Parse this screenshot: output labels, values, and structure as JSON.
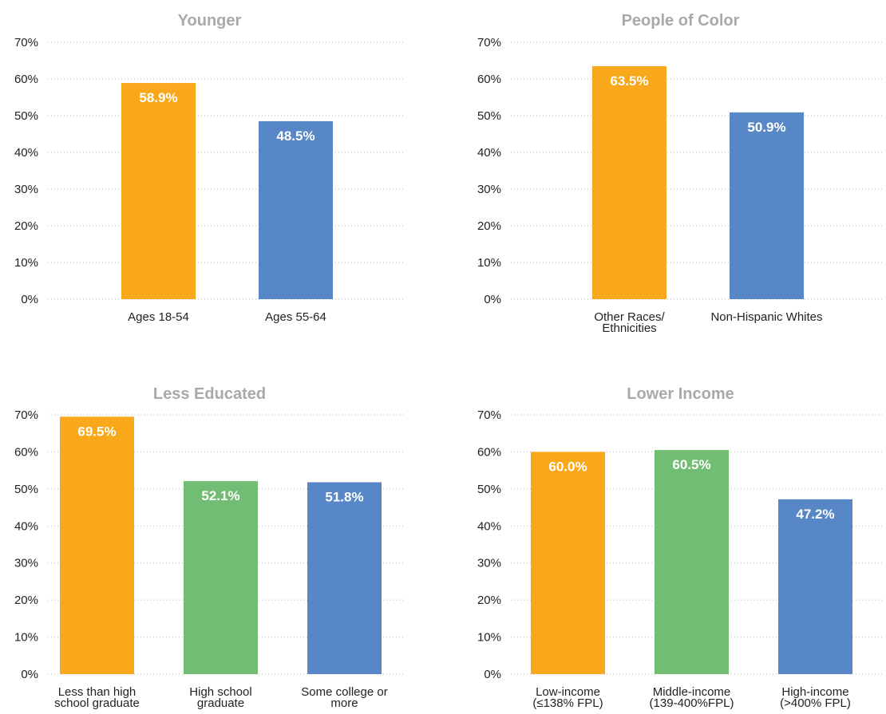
{
  "chart_data": [
    {
      "type": "bar",
      "title": "Younger",
      "categories": [
        "Ages 18-54",
        "Ages 55-64"
      ],
      "values": [
        58.9,
        48.5
      ],
      "value_labels": [
        "58.9%",
        "48.5%"
      ],
      "colors": [
        "#f9a81c",
        "#5787c6"
      ],
      "ylim": [
        0,
        70
      ],
      "yticks": [
        {
          "value": 0,
          "label": "0%"
        },
        {
          "value": 10,
          "label": "10%"
        },
        {
          "value": 20,
          "label": "20%"
        },
        {
          "value": 30,
          "label": "30%"
        },
        {
          "value": 40,
          "label": "40%"
        },
        {
          "value": 50,
          "label": "50%"
        },
        {
          "value": 60,
          "label": "60%"
        },
        {
          "value": 70,
          "label": "70%"
        }
      ],
      "grid": true
    },
    {
      "type": "bar",
      "title": "People of Color",
      "categories": [
        "Other Races/\nEthnicities",
        "Non-Hispanic Whites"
      ],
      "values": [
        63.5,
        50.9
      ],
      "value_labels": [
        "63.5%",
        "50.9%"
      ],
      "colors": [
        "#f9a81c",
        "#5787c6"
      ],
      "ylim": [
        0,
        70
      ],
      "yticks": [
        {
          "value": 0,
          "label": "0%"
        },
        {
          "value": 10,
          "label": "10%"
        },
        {
          "value": 20,
          "label": "20%"
        },
        {
          "value": 30,
          "label": "30%"
        },
        {
          "value": 40,
          "label": "40%"
        },
        {
          "value": 50,
          "label": "50%"
        },
        {
          "value": 60,
          "label": "60%"
        },
        {
          "value": 70,
          "label": "70%"
        }
      ],
      "grid": true
    },
    {
      "type": "bar",
      "title": "Less Educated",
      "categories": [
        "Less than high\nschool graduate",
        "High school\ngraduate",
        "Some college or\nmore"
      ],
      "values": [
        69.5,
        52.1,
        51.8
      ],
      "value_labels": [
        "69.5%",
        "52.1%",
        "51.8%"
      ],
      "colors": [
        "#f9a81c",
        "#72bd74",
        "#5787c6"
      ],
      "ylim": [
        0,
        70
      ],
      "yticks": [
        {
          "value": 0,
          "label": "0%"
        },
        {
          "value": 10,
          "label": "10%"
        },
        {
          "value": 20,
          "label": "20%"
        },
        {
          "value": 30,
          "label": "30%"
        },
        {
          "value": 40,
          "label": "40%"
        },
        {
          "value": 50,
          "label": "50%"
        },
        {
          "value": 60,
          "label": "60%"
        },
        {
          "value": 70,
          "label": "70%"
        }
      ],
      "grid": true
    },
    {
      "type": "bar",
      "title": "Lower Income",
      "categories": [
        "Low-income\n(≤138% FPL)",
        "Middle-income\n(139-400%FPL)",
        "High-income\n(>400% FPL)"
      ],
      "values": [
        60.0,
        60.5,
        47.2
      ],
      "value_labels": [
        "60.0%",
        "60.5%",
        "47.2%"
      ],
      "colors": [
        "#f9a81c",
        "#72bd74",
        "#5787c6"
      ],
      "ylim": [
        0,
        70
      ],
      "yticks": [
        {
          "value": 0,
          "label": "0%"
        },
        {
          "value": 10,
          "label": "10%"
        },
        {
          "value": 20,
          "label": "20%"
        },
        {
          "value": 30,
          "label": "30%"
        },
        {
          "value": 40,
          "label": "40%"
        },
        {
          "value": 50,
          "label": "50%"
        },
        {
          "value": 60,
          "label": "60%"
        },
        {
          "value": 70,
          "label": "70%"
        }
      ],
      "grid": true
    }
  ]
}
